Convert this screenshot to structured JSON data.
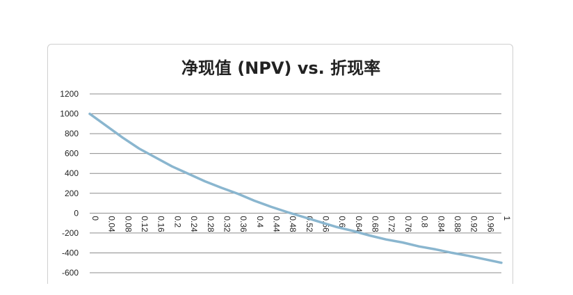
{
  "chart_data": {
    "type": "line",
    "title": "净现值 (NPV) vs. 折现率",
    "xlabel": "",
    "ylabel": "",
    "ylim": [
      -600,
      1200
    ],
    "yticks": [
      "1200",
      "1000",
      "800",
      "600",
      "400",
      "200",
      "0",
      "-200",
      "-400",
      "-600"
    ],
    "x_tick_labels": [
      "0",
      "0.04",
      "0.08",
      "0.12",
      "0.16",
      "0.2",
      "0.24",
      "0.28",
      "0.32",
      "0.36",
      "0.4",
      "0.44",
      "0.48",
      "0.52",
      "0.56",
      "0.6",
      "0.64",
      "0.68",
      "0.72",
      "0.76",
      "0.8",
      "0.84",
      "0.88",
      "0.92",
      "0.96",
      "1"
    ],
    "grid": true,
    "legend": "none",
    "series": [
      {
        "color": "#8ab6cf",
        "x": [
          0,
          0.04,
          0.08,
          0.12,
          0.16,
          0.2,
          0.24,
          0.28,
          0.32,
          0.36,
          0.4,
          0.44,
          0.48,
          0.52,
          0.56,
          0.6,
          0.64,
          0.68,
          0.72,
          0.76,
          0.8,
          0.84,
          0.88,
          0.92,
          0.96,
          1
        ],
        "values": [
          1000,
          880,
          760,
          650,
          560,
          470,
          395,
          320,
          255,
          195,
          125,
          65,
          10,
          -40,
          -90,
          -140,
          -180,
          -225,
          -265,
          -295,
          -335,
          -365,
          -400,
          -430,
          -465,
          -500
        ]
      }
    ]
  }
}
